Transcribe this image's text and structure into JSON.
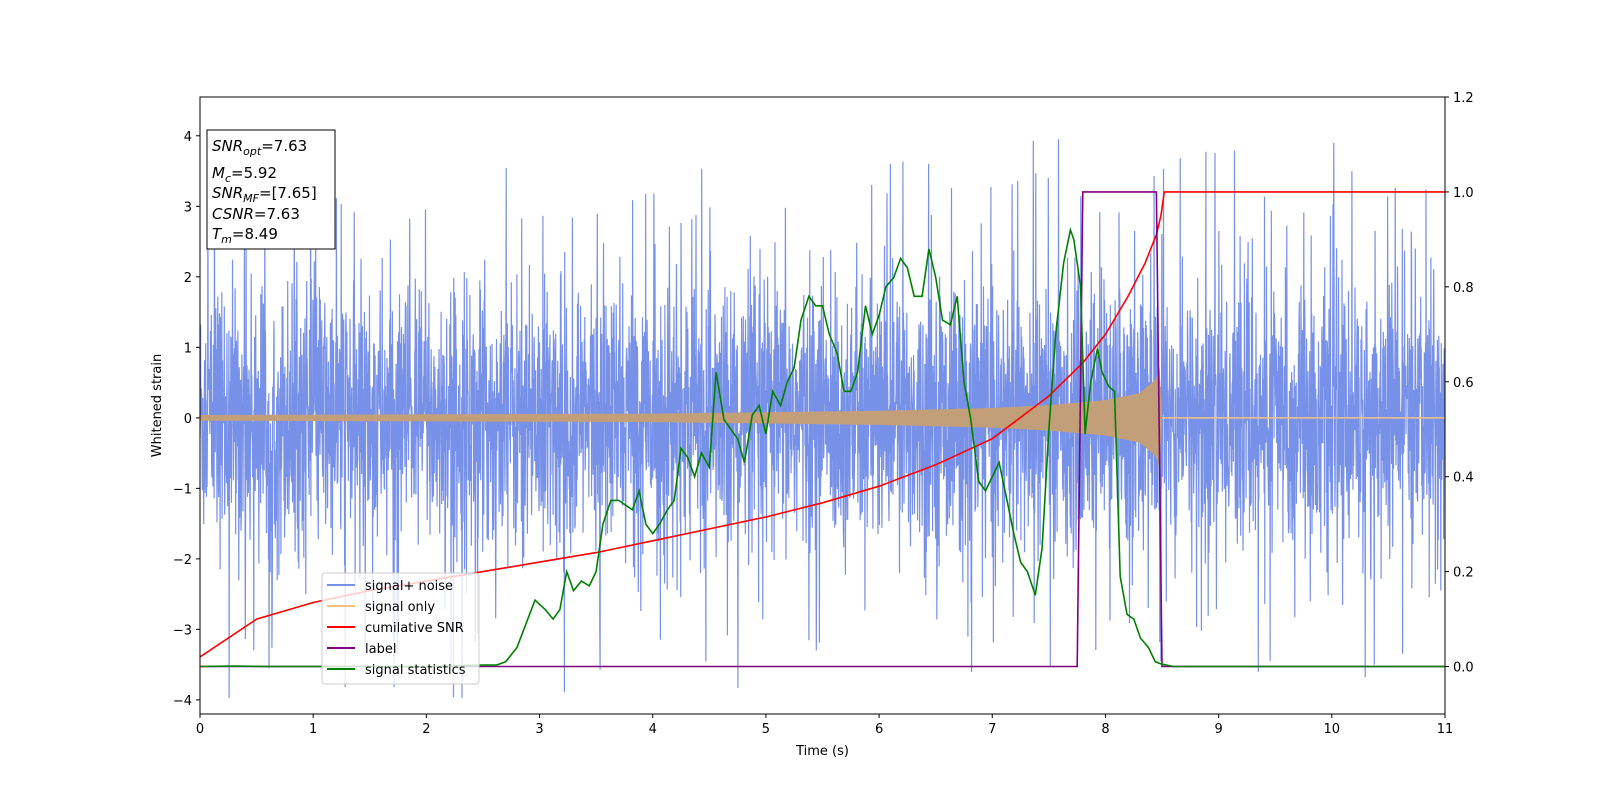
{
  "chart_data": {
    "type": "line",
    "xlabel": "Time (s)",
    "ylabel": "Whitened strain",
    "xlim": [
      0,
      11
    ],
    "ylim_left": [
      -4.2,
      4.55
    ],
    "ylim_right": [
      -0.1,
      1.2
    ],
    "x_ticks": [
      0,
      1,
      2,
      3,
      4,
      5,
      6,
      7,
      8,
      9,
      10,
      11
    ],
    "y_left_ticks": [
      -4,
      -3,
      -2,
      -1,
      0,
      1,
      2,
      3,
      4
    ],
    "y_left_tick_labels": [
      "−4",
      "−3",
      "−2",
      "−1",
      "0",
      "1",
      "2",
      "3",
      "4"
    ],
    "y_right_ticks": [
      0.0,
      0.2,
      0.4,
      0.6,
      0.8,
      1.0,
      1.2
    ],
    "y_right_tick_labels": [
      "0.0",
      "0.2",
      "0.4",
      "0.6",
      "0.8",
      "1.0",
      "1.2"
    ],
    "grid": false,
    "legend_position": "lower-left",
    "annotation": {
      "snr_opt": {
        "sym": "SNR",
        "sub": "opt",
        "val": "=7.63"
      },
      "mc": {
        "sym": "M",
        "sub": "c",
        "val": "=5.92"
      },
      "snr_mf": {
        "sym": "SNR",
        "sub": "MF",
        "val": "=[7.65]"
      },
      "csnr": {
        "sym": "CSNR",
        "val": "=7.63"
      },
      "tm": {
        "sym": "T",
        "sub": "m",
        "val": "=8.49"
      }
    },
    "series": [
      {
        "name": "signal+ noise",
        "axis": "left",
        "color": "#7891e8",
        "kind": "noise",
        "description_values": {
          "typical_range": [
            -2.2,
            2.2
          ],
          "peak_max": 4.18,
          "peak_min": -3.8
        }
      },
      {
        "name": "signal only",
        "axis": "left",
        "color": "#f5c17f",
        "kind": "chirp",
        "fill_color": "#c29f78",
        "t_merge": 8.5,
        "envelope": {
          "x": [
            0,
            2,
            4,
            5,
            6,
            7,
            7.5,
            8,
            8.3,
            8.45,
            8.5
          ],
          "y": [
            0.04,
            0.05,
            0.06,
            0.08,
            0.1,
            0.14,
            0.18,
            0.25,
            0.35,
            0.55,
            0.85
          ]
        }
      },
      {
        "name": "cumilative SNR",
        "axis": "right",
        "color": "#ff0000",
        "x": [
          0,
          0.5,
          1,
          1.5,
          2,
          2.5,
          3,
          3.5,
          4,
          4.5,
          5,
          5.5,
          6,
          6.5,
          7,
          7.5,
          7.8,
          8.0,
          8.2,
          8.35,
          8.45,
          8.49,
          8.52,
          11
        ],
        "y": [
          0.02,
          0.1,
          0.135,
          0.16,
          0.18,
          0.2,
          0.22,
          0.24,
          0.265,
          0.29,
          0.315,
          0.345,
          0.38,
          0.425,
          0.48,
          0.57,
          0.64,
          0.7,
          0.78,
          0.85,
          0.91,
          0.95,
          1.0,
          1.0
        ]
      },
      {
        "name": "label",
        "axis": "right",
        "color": "#800080",
        "x": [
          0,
          7.75,
          7.8,
          8.45,
          8.5,
          11
        ],
        "y": [
          0,
          0,
          1,
          1,
          0,
          0
        ]
      },
      {
        "name": "signal statistics",
        "axis": "right",
        "color": "#008000",
        "x": [
          0,
          0.3,
          0.6,
          1,
          2,
          2.5,
          2.62,
          2.7,
          2.8,
          2.88,
          2.96,
          3.05,
          3.12,
          3.18,
          3.24,
          3.3,
          3.37,
          3.44,
          3.5,
          3.56,
          3.63,
          3.7,
          3.76,
          3.82,
          3.88,
          3.94,
          4.0,
          4.06,
          4.13,
          4.19,
          4.25,
          4.31,
          4.37,
          4.43,
          4.5,
          4.56,
          4.63,
          4.69,
          4.75,
          4.81,
          4.88,
          4.94,
          5.0,
          5.06,
          5.13,
          5.19,
          5.25,
          5.31,
          5.38,
          5.44,
          5.5,
          5.56,
          5.63,
          5.69,
          5.75,
          5.81,
          5.88,
          5.94,
          6.0,
          6.06,
          6.13,
          6.19,
          6.25,
          6.31,
          6.38,
          6.44,
          6.5,
          6.56,
          6.63,
          6.69,
          6.75,
          6.81,
          6.88,
          6.94,
          7.0,
          7.06,
          7.13,
          7.19,
          7.25,
          7.31,
          7.38,
          7.44,
          7.5,
          7.56,
          7.63,
          7.69,
          7.72,
          7.78,
          7.82,
          7.87,
          7.93,
          7.97,
          8.03,
          8.08,
          8.13,
          8.19,
          8.25,
          8.31,
          8.38,
          8.44,
          8.5,
          8.6,
          9,
          11
        ],
        "y": [
          0,
          0.001,
          0,
          0,
          0,
          0.003,
          0.003,
          0.01,
          0.04,
          0.09,
          0.14,
          0.12,
          0.1,
          0.12,
          0.2,
          0.16,
          0.18,
          0.17,
          0.2,
          0.3,
          0.35,
          0.35,
          0.34,
          0.33,
          0.37,
          0.3,
          0.28,
          0.3,
          0.33,
          0.35,
          0.46,
          0.44,
          0.4,
          0.45,
          0.42,
          0.62,
          0.52,
          0.5,
          0.48,
          0.43,
          0.53,
          0.55,
          0.49,
          0.58,
          0.55,
          0.6,
          0.63,
          0.73,
          0.78,
          0.76,
          0.76,
          0.7,
          0.66,
          0.58,
          0.58,
          0.62,
          0.76,
          0.7,
          0.74,
          0.8,
          0.82,
          0.86,
          0.84,
          0.78,
          0.78,
          0.88,
          0.82,
          0.73,
          0.72,
          0.78,
          0.6,
          0.52,
          0.39,
          0.37,
          0.4,
          0.43,
          0.35,
          0.28,
          0.22,
          0.2,
          0.15,
          0.25,
          0.5,
          0.7,
          0.85,
          0.92,
          0.9,
          0.8,
          0.49,
          0.6,
          0.67,
          0.62,
          0.59,
          0.58,
          0.19,
          0.11,
          0.1,
          0.06,
          0.04,
          0.01,
          0.005,
          0.0,
          0.0,
          0.0
        ]
      }
    ]
  }
}
